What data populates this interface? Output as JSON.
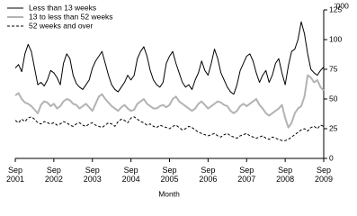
{
  "chart_data": {
    "type": "line",
    "y_label": "'000",
    "x_label": "Month",
    "x": [
      "2001-09",
      "2001-10",
      "2001-11",
      "2001-12",
      "2002-01",
      "2002-02",
      "2002-03",
      "2002-04",
      "2002-05",
      "2002-06",
      "2002-07",
      "2002-08",
      "2002-09",
      "2002-10",
      "2002-11",
      "2002-12",
      "2003-01",
      "2003-02",
      "2003-03",
      "2003-04",
      "2003-05",
      "2003-06",
      "2003-07",
      "2003-08",
      "2003-09",
      "2003-10",
      "2003-11",
      "2003-12",
      "2004-01",
      "2004-02",
      "2004-03",
      "2004-04",
      "2004-05",
      "2004-06",
      "2004-07",
      "2004-08",
      "2004-09",
      "2004-10",
      "2004-11",
      "2004-12",
      "2005-01",
      "2005-02",
      "2005-03",
      "2005-04",
      "2005-05",
      "2005-06",
      "2005-07",
      "2005-08",
      "2005-09",
      "2005-10",
      "2005-11",
      "2005-12",
      "2006-01",
      "2006-02",
      "2006-03",
      "2006-04",
      "2006-05",
      "2006-06",
      "2006-07",
      "2006-08",
      "2006-09",
      "2006-10",
      "2006-11",
      "2006-12",
      "2007-01",
      "2007-02",
      "2007-03",
      "2007-04",
      "2007-05",
      "2007-06",
      "2007-07",
      "2007-08",
      "2007-09",
      "2007-10",
      "2007-11",
      "2007-12",
      "2008-01",
      "2008-02",
      "2008-03",
      "2008-04",
      "2008-05",
      "2008-06",
      "2008-07",
      "2008-08",
      "2008-09",
      "2008-10",
      "2008-11",
      "2008-12",
      "2009-01",
      "2009-02",
      "2009-03",
      "2009-04",
      "2009-05",
      "2009-06",
      "2009-07",
      "2009-08",
      "2009-09"
    ],
    "series": [
      {
        "name": "Less than 13 weeks",
        "color": "#000000",
        "width": 1,
        "dashed": false,
        "values": [
          76,
          79,
          73,
          88,
          96,
          90,
          76,
          62,
          64,
          61,
          66,
          74,
          72,
          68,
          62,
          80,
          88,
          84,
          70,
          63,
          60,
          58,
          62,
          66,
          76,
          82,
          86,
          90,
          80,
          70,
          62,
          58,
          56,
          60,
          64,
          70,
          66,
          70,
          84,
          90,
          94,
          86,
          74,
          66,
          62,
          60,
          64,
          80,
          86,
          90,
          80,
          72,
          64,
          60,
          62,
          58,
          66,
          72,
          82,
          74,
          70,
          80,
          92,
          84,
          72,
          66,
          60,
          56,
          54,
          62,
          74,
          80,
          86,
          88,
          82,
          72,
          64,
          70,
          74,
          64,
          70,
          80,
          84,
          72,
          62,
          78,
          90,
          92,
          100,
          115,
          105,
          88,
          75,
          72,
          70,
          74,
          77
        ]
      },
      {
        "name": "13 to less than 52 weeks",
        "color": "#b3b3b3",
        "width": 2,
        "dashed": false,
        "values": [
          53,
          55,
          50,
          47,
          46,
          44,
          41,
          38,
          45,
          48,
          47,
          44,
          46,
          42,
          44,
          48,
          50,
          49,
          46,
          45,
          42,
          44,
          46,
          43,
          40,
          46,
          52,
          54,
          50,
          47,
          44,
          42,
          40,
          43,
          45,
          42,
          40,
          41,
          46,
          48,
          50,
          46,
          44,
          42,
          42,
          44,
          45,
          43,
          45,
          50,
          52,
          48,
          46,
          44,
          42,
          40,
          42,
          46,
          48,
          45,
          42,
          44,
          46,
          48,
          47,
          45,
          44,
          40,
          38,
          40,
          44,
          46,
          44,
          46,
          48,
          50,
          45,
          42,
          38,
          36,
          38,
          40,
          42,
          45,
          34,
          26,
          30,
          38,
          42,
          44,
          52,
          70,
          68,
          64,
          66,
          60,
          57
        ]
      },
      {
        "name": "52 weeks and over",
        "color": "#000000",
        "width": 1,
        "dashed": true,
        "values": [
          32,
          30,
          33,
          31,
          34,
          35,
          33,
          30,
          29,
          31,
          30,
          29,
          30,
          28,
          29,
          31,
          30,
          28,
          27,
          29,
          30,
          28,
          27,
          29,
          30,
          28,
          27,
          26,
          28,
          30,
          29,
          27,
          31,
          33,
          32,
          30,
          34,
          35,
          33,
          31,
          30,
          28,
          29,
          27,
          26,
          28,
          27,
          26,
          25,
          27,
          28,
          26,
          24,
          25,
          27,
          26,
          24,
          22,
          21,
          20,
          19,
          20,
          21,
          19,
          18,
          20,
          21,
          19,
          18,
          17,
          19,
          20,
          21,
          19,
          18,
          17,
          18,
          19,
          17,
          16,
          18,
          17,
          16,
          15,
          15,
          16,
          18,
          20,
          22,
          24,
          25,
          23,
          26,
          27,
          25,
          28,
          27
        ]
      }
    ],
    "ylim": [
      0,
      125
    ],
    "yticks": [
      0,
      25,
      50,
      75,
      100,
      125
    ],
    "y_axis_side": "right",
    "xticks": [
      {
        "value": "2001-09",
        "label": "Sep 2001"
      },
      {
        "value": "2002-09",
        "label": "Sep 2002"
      },
      {
        "value": "2003-09",
        "label": "Sep 2003"
      },
      {
        "value": "2004-09",
        "label": "Sep 2004"
      },
      {
        "value": "2005-09",
        "label": "Sep 2005"
      },
      {
        "value": "2006-09",
        "label": "Sep 2006"
      },
      {
        "value": "2007-09",
        "label": "Sep 2007"
      },
      {
        "value": "2008-09",
        "label": "Sep 2008"
      },
      {
        "value": "2009-09",
        "label": "Sep 2009"
      }
    ],
    "legend": "top-left",
    "grid": false
  }
}
